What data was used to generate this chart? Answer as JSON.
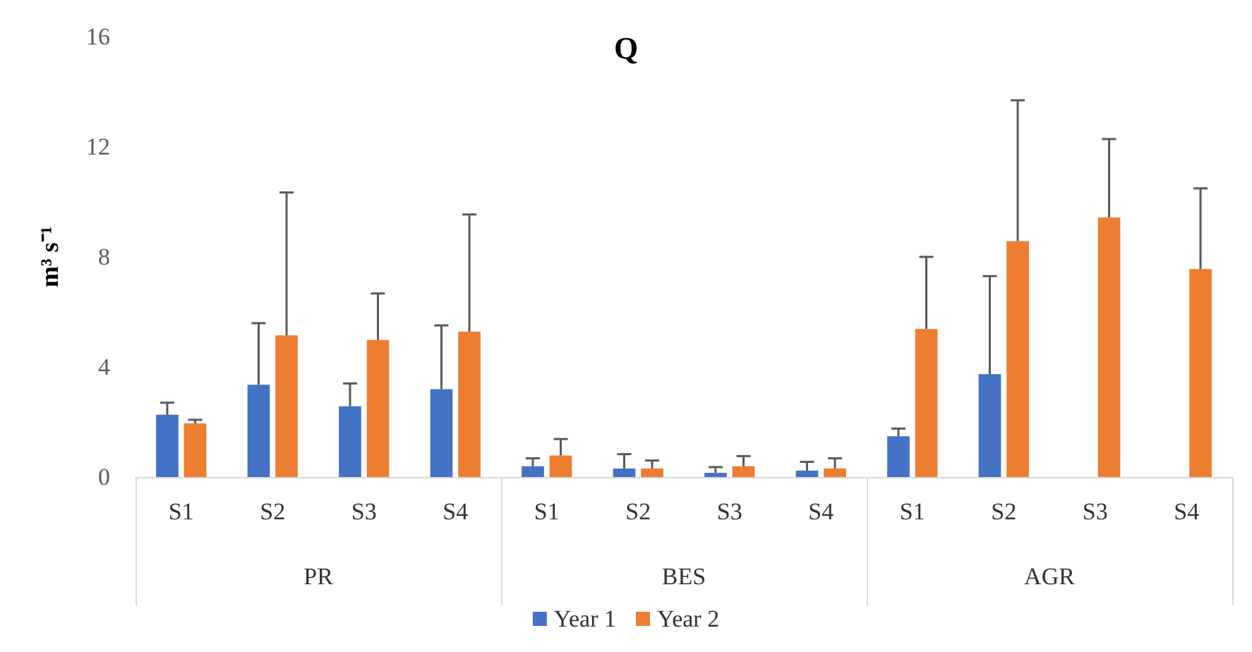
{
  "chart_data": {
    "type": "bar",
    "title": "Q",
    "ylabel": "m³ s⁻¹",
    "categories": [
      "S1",
      "S2",
      "S3",
      "S4",
      "S1",
      "S2",
      "S3",
      "S4",
      "S1",
      "S2",
      "S3",
      "S4"
    ],
    "annotations": [
      "PR",
      "BES",
      "AGR"
    ],
    "series": [
      {
        "name": "Year 1",
        "color": "#4472c4",
        "values": [
          2.26,
          3.35,
          2.57,
          3.19,
          0.39,
          0.31,
          0.15,
          0.23,
          1.48,
          3.74,
          null,
          null
        ],
        "errors": [
          [
            2.26,
            2.7
          ],
          [
            3.35,
            5.59
          ],
          [
            2.57,
            3.4
          ],
          [
            3.19,
            5.51
          ],
          [
            0.39,
            0.68
          ],
          [
            0.31,
            0.83
          ],
          [
            0.15,
            0.36
          ],
          [
            0.23,
            0.55
          ],
          [
            1.48,
            1.76
          ],
          [
            3.74,
            7.3
          ],
          null,
          null
        ]
      },
      {
        "name": "Year 2",
        "color": "#ed7d31",
        "values": [
          1.95,
          5.15,
          4.98,
          5.28,
          0.78,
          0.31,
          0.39,
          0.31,
          5.38,
          8.57,
          9.43,
          7.56
        ],
        "errors": [
          [
            1.95,
            2.08
          ],
          [
            5.15,
            10.34
          ],
          [
            4.98,
            6.67
          ],
          [
            5.28,
            9.54
          ],
          [
            0.78,
            1.38
          ],
          [
            0.31,
            0.6
          ],
          [
            0.39,
            0.76
          ],
          [
            0.31,
            0.68
          ],
          [
            5.38,
            8.0
          ],
          [
            8.57,
            13.69
          ],
          [
            9.43,
            12.28
          ],
          [
            7.56,
            10.49
          ]
        ]
      }
    ],
    "ylim": [
      0,
      16
    ],
    "yticks": [
      0,
      4,
      8,
      12,
      16
    ],
    "grid": false,
    "legend": "bottom"
  }
}
